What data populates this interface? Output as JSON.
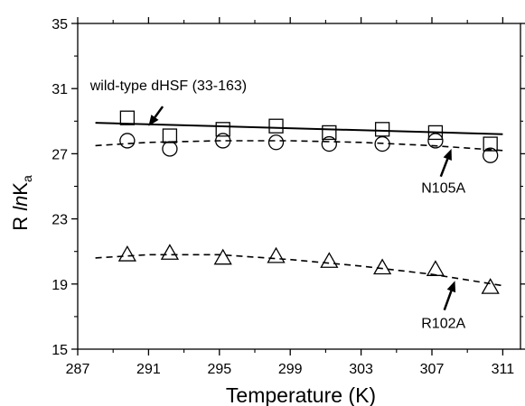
{
  "chart_data": {
    "type": "scatter",
    "xlabel": "Temperature (K)",
    "ylabel": {
      "prefix": "R ",
      "italic": "ln",
      "main": "K",
      "subscript": "a"
    },
    "xlim": [
      287,
      312
    ],
    "ylim": [
      15,
      35
    ],
    "xticks": [
      287,
      291,
      295,
      299,
      303,
      307,
      311
    ],
    "yticks": [
      15,
      19,
      23,
      27,
      31,
      35
    ],
    "grid": false,
    "series": [
      {
        "marker": "square",
        "points": [
          [
            289.8,
            29.2
          ],
          [
            292.2,
            28.1
          ],
          [
            295.2,
            28.5
          ],
          [
            298.2,
            28.7
          ],
          [
            301.2,
            28.3
          ],
          [
            304.2,
            28.5
          ],
          [
            307.2,
            28.3
          ],
          [
            310.3,
            27.6
          ]
        ],
        "fit": {
          "style": "solid",
          "points": [
            [
              288,
              28.9
            ],
            [
              311,
              28.2
            ]
          ]
        }
      },
      {
        "marker": "circle",
        "points": [
          [
            289.8,
            27.8
          ],
          [
            292.2,
            27.3
          ],
          [
            295.2,
            27.8
          ],
          [
            298.2,
            27.7
          ],
          [
            301.2,
            27.6
          ],
          [
            304.2,
            27.6
          ],
          [
            307.2,
            27.8
          ],
          [
            310.3,
            26.9
          ]
        ],
        "fit": {
          "style": "dashed",
          "points": [
            [
              288,
              27.5
            ],
            [
              291,
              27.7
            ],
            [
              295,
              27.8
            ],
            [
              299,
              27.8
            ],
            [
              303,
              27.7
            ],
            [
              307,
              27.5
            ],
            [
              311,
              27.2
            ]
          ]
        }
      },
      {
        "marker": "triangle",
        "points": [
          [
            289.8,
            20.8
          ],
          [
            292.2,
            20.9
          ],
          [
            295.2,
            20.6
          ],
          [
            298.2,
            20.7
          ],
          [
            301.2,
            20.4
          ],
          [
            304.2,
            20.0
          ],
          [
            307.2,
            19.9
          ],
          [
            310.3,
            18.8
          ]
        ],
        "fit": {
          "style": "dashed",
          "points": [
            [
              288,
              20.6
            ],
            [
              291,
              20.8
            ],
            [
              295,
              20.8
            ],
            [
              299,
              20.5
            ],
            [
              303,
              20.1
            ],
            [
              307,
              19.6
            ],
            [
              311,
              18.9
            ]
          ]
        }
      }
    ],
    "annotations": [
      {
        "text": "wild-type dHSF (33-163)",
        "label_at": [
          287.7,
          30.9
        ],
        "arrow_from": [
          291.8,
          29.9
        ],
        "arrow_to": [
          291.0,
          28.7
        ]
      },
      {
        "text": "N105A",
        "label_at": [
          306.4,
          24.6
        ],
        "arrow_from": [
          307.5,
          25.6
        ],
        "arrow_to": [
          308.1,
          27.3
        ]
      },
      {
        "text": "R102A",
        "label_at": [
          306.4,
          16.3
        ],
        "arrow_from": [
          307.7,
          17.4
        ],
        "arrow_to": [
          308.3,
          19.2
        ]
      }
    ]
  }
}
